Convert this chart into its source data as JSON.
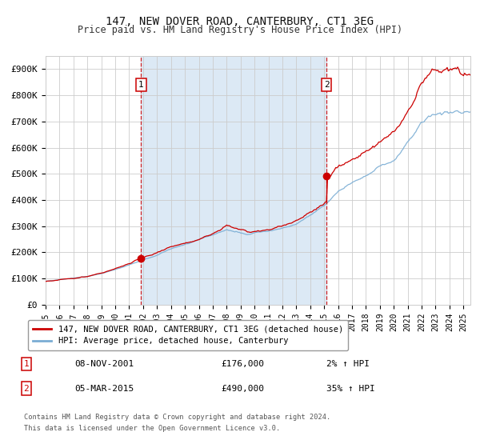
{
  "title": "147, NEW DOVER ROAD, CANTERBURY, CT1 3EG",
  "subtitle": "Price paid vs. HM Land Registry's House Price Index (HPI)",
  "xlim_start": 1995.0,
  "xlim_end": 2025.5,
  "ylim": [
    0,
    950000
  ],
  "yticks": [
    0,
    100000,
    200000,
    300000,
    400000,
    500000,
    600000,
    700000,
    800000,
    900000
  ],
  "ytick_labels": [
    "£0",
    "£100K",
    "£200K",
    "£300K",
    "£400K",
    "£500K",
    "£600K",
    "£700K",
    "£800K",
    "£900K"
  ],
  "xticks": [
    1995,
    1996,
    1997,
    1998,
    1999,
    2000,
    2001,
    2002,
    2003,
    2004,
    2005,
    2006,
    2007,
    2008,
    2009,
    2010,
    2011,
    2012,
    2013,
    2014,
    2015,
    2016,
    2017,
    2018,
    2019,
    2020,
    2021,
    2022,
    2023,
    2024,
    2025
  ],
  "purchase1_date": 2001.86,
  "purchase1_price": 176000,
  "purchase1_label": "1",
  "purchase1_date_str": "08-NOV-2001",
  "purchase1_price_str": "£176,000",
  "purchase1_hpi_str": "2% ↑ HPI",
  "purchase2_date": 2015.17,
  "purchase2_price": 490000,
  "purchase2_label": "2",
  "purchase2_date_str": "05-MAR-2015",
  "purchase2_price_str": "£490,000",
  "purchase2_hpi_str": "35% ↑ HPI",
  "shaded_color": "#dce9f5",
  "background_color": "#ffffff",
  "grid_color": "#cccccc",
  "red_line_color": "#cc0000",
  "blue_line_color": "#7aadd4",
  "legend1_label": "147, NEW DOVER ROAD, CANTERBURY, CT1 3EG (detached house)",
  "legend2_label": "HPI: Average price, detached house, Canterbury",
  "footnote1": "Contains HM Land Registry data © Crown copyright and database right 2024.",
  "footnote2": "This data is licensed under the Open Government Licence v3.0."
}
